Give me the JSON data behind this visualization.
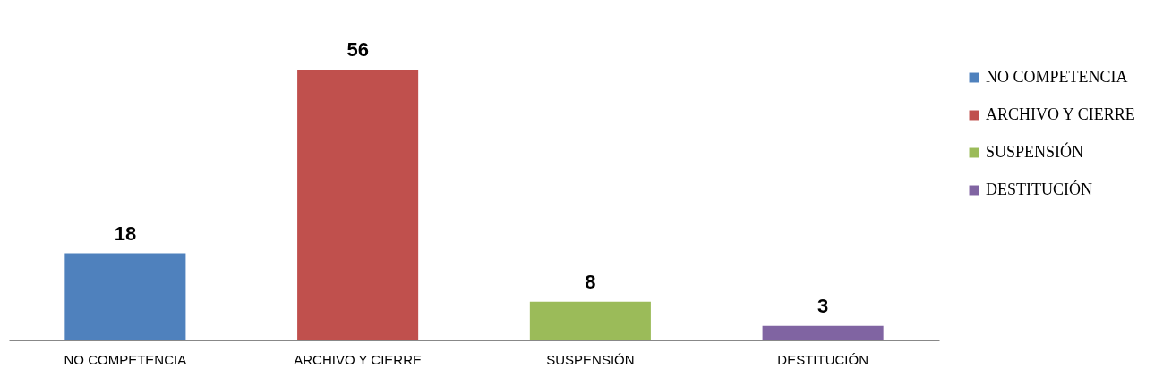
{
  "chart_data": {
    "type": "bar",
    "categories": [
      "NO COMPETENCIA",
      "ARCHIVO Y CIERRE",
      "SUSPENSIÓN",
      "DESTITUCIÓN"
    ],
    "series": [
      {
        "name": "NO COMPETENCIA",
        "color": "#4f81bd",
        "values": [
          18,
          null,
          null,
          null
        ]
      },
      {
        "name": "ARCHIVO Y CIERRE",
        "color": "#c0504d",
        "values": [
          null,
          56,
          null,
          null
        ]
      },
      {
        "name": "SUSPENSIÓN",
        "color": "#9bbb59",
        "values": [
          null,
          null,
          8,
          null
        ]
      },
      {
        "name": "DESTITUCIÓN",
        "color": "#8064a2",
        "values": [
          null,
          null,
          null,
          3
        ]
      }
    ],
    "data_labels": true,
    "legend": "right"
  }
}
